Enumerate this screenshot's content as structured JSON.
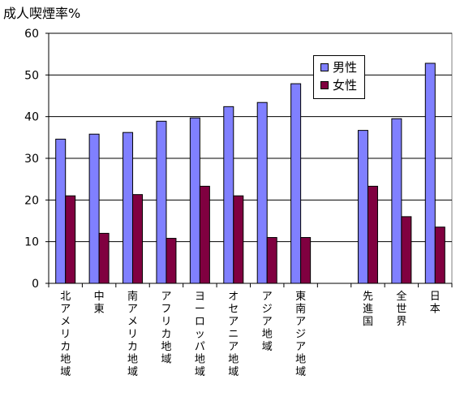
{
  "chart_data": {
    "type": "bar",
    "title": "成人喫煙率%",
    "ylim": [
      0,
      60
    ],
    "yticks": [
      0,
      10,
      20,
      30,
      40,
      50,
      60
    ],
    "grid": true,
    "legend_position": "top-right",
    "categories": [
      "北アメリカ地域",
      "中東",
      "南アメリカ地域",
      "アフリカ地域",
      "ヨーロッパ地域",
      "オセアニア地域",
      "アジア地域",
      "東南アジア地域",
      "",
      "先進国",
      "全世界",
      "日本"
    ],
    "series": [
      {
        "name": "男性",
        "color": "#8080ff",
        "values": [
          34.6,
          35.8,
          36.2,
          38.9,
          39.7,
          42.4,
          43.4,
          47.9,
          null,
          36.7,
          39.5,
          52.8
        ]
      },
      {
        "name": "女性",
        "color": "#800040",
        "values": [
          21.0,
          12.0,
          21.3,
          10.8,
          23.3,
          21.0,
          11.0,
          11.0,
          null,
          23.3,
          16.0,
          13.5
        ]
      }
    ]
  },
  "colors": {
    "plot_bg": "#ffffff",
    "grid": "#000000"
  }
}
